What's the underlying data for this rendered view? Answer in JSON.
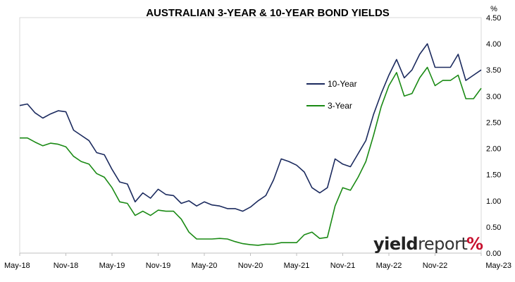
{
  "chart_data": {
    "type": "line",
    "title": "AUSTRALIAN 3-YEAR & 10-YEAR BOND YIELDS",
    "y_unit": "%",
    "ylim": [
      0,
      4.5
    ],
    "y_ticks": [
      "0.00",
      "0.50",
      "1.00",
      "1.50",
      "2.00",
      "2.50",
      "3.00",
      "3.50",
      "4.00",
      "4.50"
    ],
    "x_tick_labels": [
      "May-18",
      "Nov-18",
      "May-19",
      "Nov-19",
      "May-20",
      "Nov-20",
      "May-21",
      "Nov-21",
      "May-22",
      "Nov-22",
      "May-23"
    ],
    "legend_position": "upper-middle",
    "grid": false,
    "x": [
      "May-18",
      "Jun-18",
      "Jul-18",
      "Aug-18",
      "Sep-18",
      "Oct-18",
      "Nov-18",
      "Dec-18",
      "Jan-19",
      "Feb-19",
      "Mar-19",
      "Apr-19",
      "May-19",
      "Jun-19",
      "Jul-19",
      "Aug-19",
      "Sep-19",
      "Oct-19",
      "Nov-19",
      "Dec-19",
      "Jan-20",
      "Feb-20",
      "Mar-20",
      "Apr-20",
      "May-20",
      "Jun-20",
      "Jul-20",
      "Aug-20",
      "Sep-20",
      "Oct-20",
      "Nov-20",
      "Dec-20",
      "Jan-21",
      "Feb-21",
      "Mar-21",
      "Apr-21",
      "May-21",
      "Jun-21",
      "Jul-21",
      "Aug-21",
      "Sep-21",
      "Oct-21",
      "Nov-21",
      "Dec-21",
      "Jan-22",
      "Feb-22",
      "Mar-22",
      "Apr-22",
      "May-22",
      "Jun-22",
      "Jul-22",
      "Aug-22",
      "Sep-22",
      "Oct-22",
      "Nov-22",
      "Dec-22",
      "Jan-23",
      "Feb-23",
      "Mar-23",
      "Apr-23",
      "May-23"
    ],
    "series": [
      {
        "name": "10-Year",
        "color": "#1b2a5e",
        "values": [
          2.82,
          2.85,
          2.68,
          2.58,
          2.66,
          2.72,
          2.7,
          2.35,
          2.25,
          2.15,
          1.92,
          1.88,
          1.6,
          1.36,
          1.32,
          0.98,
          1.15,
          1.05,
          1.22,
          1.12,
          1.1,
          0.95,
          1.0,
          0.9,
          0.98,
          0.92,
          0.9,
          0.85,
          0.85,
          0.8,
          0.88,
          1.0,
          1.1,
          1.4,
          1.8,
          1.75,
          1.68,
          1.55,
          1.25,
          1.15,
          1.25,
          1.8,
          1.7,
          1.65,
          1.9,
          2.15,
          2.65,
          3.05,
          3.4,
          3.7,
          3.35,
          3.5,
          3.8,
          4.0,
          3.55,
          3.55,
          3.55,
          3.8,
          3.3,
          3.4,
          3.5
        ]
      },
      {
        "name": "3-Year",
        "color": "#1a8a14",
        "values": [
          2.2,
          2.2,
          2.12,
          2.05,
          2.1,
          2.08,
          2.03,
          1.85,
          1.75,
          1.7,
          1.52,
          1.45,
          1.25,
          0.98,
          0.95,
          0.72,
          0.8,
          0.72,
          0.82,
          0.8,
          0.8,
          0.65,
          0.4,
          0.27,
          0.27,
          0.27,
          0.28,
          0.27,
          0.22,
          0.18,
          0.16,
          0.15,
          0.17,
          0.17,
          0.2,
          0.2,
          0.2,
          0.35,
          0.4,
          0.28,
          0.3,
          0.9,
          1.25,
          1.2,
          1.45,
          1.75,
          2.25,
          2.8,
          3.2,
          3.45,
          3.0,
          3.05,
          3.35,
          3.55,
          3.2,
          3.3,
          3.3,
          3.4,
          2.95,
          2.95,
          3.15
        ]
      }
    ]
  },
  "brand": {
    "main": "yield",
    "sub": "report",
    "pct": "%"
  }
}
